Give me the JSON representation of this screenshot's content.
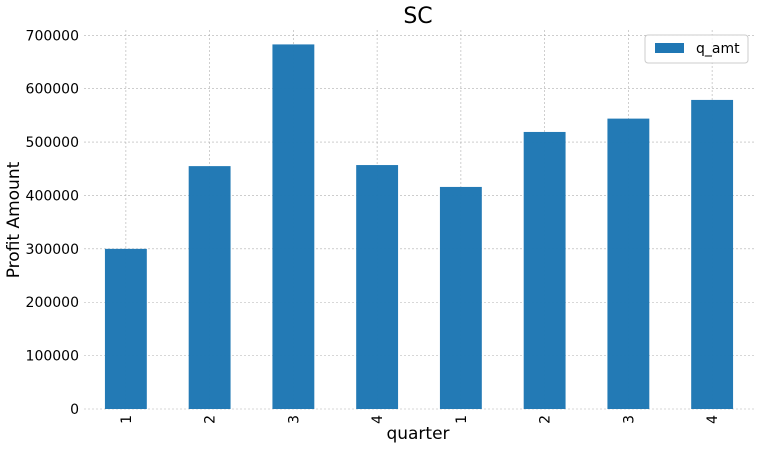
{
  "chart_data": {
    "type": "bar",
    "title": "SC",
    "xlabel": "quarter",
    "ylabel": "Profit Amount",
    "categories": [
      "1",
      "2",
      "3",
      "4",
      "1",
      "2",
      "3",
      "4"
    ],
    "series": [
      {
        "name": "q_amt",
        "values": [
          300000,
          455000,
          683000,
          457000,
          416000,
          519000,
          544000,
          579000
        ]
      }
    ],
    "ylim": [
      0,
      710000
    ],
    "yticks": [
      0,
      100000,
      200000,
      300000,
      400000,
      500000,
      600000,
      700000
    ],
    "ytick_labels": [
      "0",
      "100000",
      "200000",
      "300000",
      "400000",
      "500000",
      "600000",
      "700000"
    ],
    "grid": true,
    "legend_position": "top-right",
    "bar_color": "#1f77b4"
  }
}
